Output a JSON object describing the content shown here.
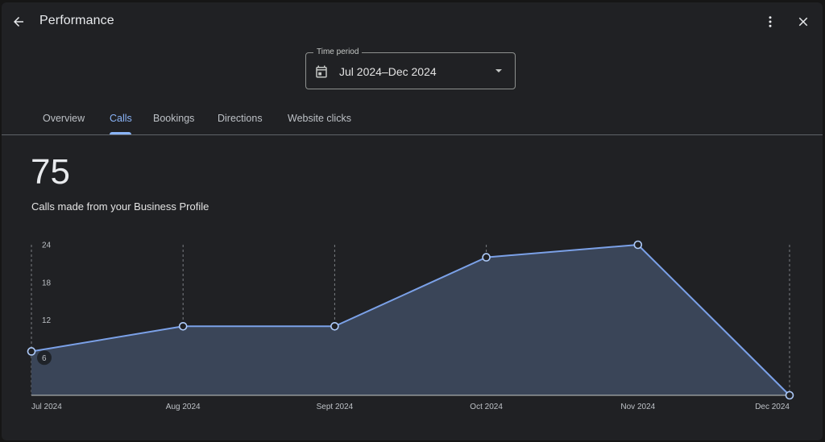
{
  "header": {
    "title": "Performance",
    "back_icon": "arrow-back-icon",
    "more_icon": "more-vert-icon",
    "close_icon": "close-icon"
  },
  "time_period": {
    "legend": "Time period",
    "value": "Jul 2024–Dec 2024",
    "icon": "calendar-icon"
  },
  "tabs": [
    {
      "label": "Overview",
      "active": false
    },
    {
      "label": "Calls",
      "active": true
    },
    {
      "label": "Bookings",
      "active": false
    },
    {
      "label": "Directions",
      "active": false
    },
    {
      "label": "Website clicks",
      "active": false
    }
  ],
  "summary": {
    "total": "75",
    "description": "Calls made from your Business Profile"
  },
  "colors": {
    "accent": "#8ab4f8",
    "line": "#7ba1e8",
    "area": "#3a4558",
    "background": "#202124"
  },
  "chart_data": {
    "type": "area",
    "categories": [
      "Jul 2024",
      "Aug 2024",
      "Sept 2024",
      "Oct 2024",
      "Nov 2024",
      "Dec 2024"
    ],
    "values": [
      7,
      11,
      11,
      22,
      24,
      0
    ],
    "y_ticks": [
      "24",
      "18",
      "12",
      "6"
    ],
    "ylim": [
      0,
      24
    ],
    "xlabel": "",
    "ylabel": "",
    "grid": "vertical-dashed",
    "legend": "none"
  }
}
